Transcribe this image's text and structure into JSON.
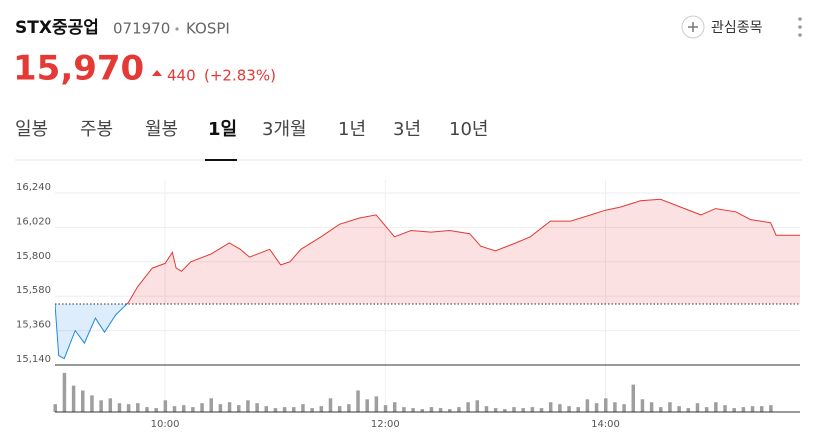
{
  "header": {
    "name": "STX중공업",
    "code": "071970",
    "market": "KOSPI",
    "price": "15,970",
    "change": "440",
    "change_pct": "(+2.83%)",
    "watch_label": "관심종목"
  },
  "tabs": [
    "일봉",
    "주봉",
    "월봉",
    "1일",
    "3개월",
    "1년",
    "3년",
    "10년"
  ],
  "active_tab": 3,
  "chart_data": {
    "type": "line",
    "x": [
      540,
      542,
      545,
      551,
      556,
      562,
      567,
      573,
      580,
      585,
      589,
      593,
      600,
      604,
      606,
      609,
      614,
      625,
      635,
      641,
      646,
      657,
      663,
      668,
      674,
      685,
      695,
      706,
      715,
      720,
      725,
      734,
      745,
      755,
      766,
      772,
      780,
      791,
      799,
      810,
      821,
      832,
      840,
      848,
      859,
      870,
      881,
      892,
      900,
      911,
      919,
      930,
      933,
      946
    ],
    "series": [
      {
        "values": [
          15530,
          15200,
          15180,
          15360,
          15280,
          15440,
          15350,
          15460,
          15540,
          15640,
          15700,
          15760,
          15790,
          15860,
          15760,
          15740,
          15800,
          15850,
          15920,
          15880,
          15830,
          15880,
          15780,
          15800,
          15880,
          15960,
          16040,
          16080,
          16100,
          16030,
          15960,
          16000,
          15990,
          16000,
          15980,
          15900,
          15870,
          15920,
          15960,
          16060,
          16060,
          16100,
          16130,
          16150,
          16190,
          16200,
          16150,
          16100,
          16140,
          16120,
          16070,
          16050,
          15970,
          15970
        ],
        "up_color": "#e53935",
        "down_color": "#1e88e5"
      }
    ],
    "baseline": 15530,
    "xlim": [
      540,
      946
    ],
    "ylim": [
      15140,
      16240
    ],
    "yticks": [
      {
        "value": 16240,
        "label": "16,240"
      },
      {
        "value": 16020,
        "label": "16,020"
      },
      {
        "value": 15800,
        "label": "15,800"
      },
      {
        "value": 15580,
        "label": "15,580"
      },
      {
        "value": 15360,
        "label": "15,360"
      },
      {
        "value": 15140,
        "label": "15,140"
      }
    ],
    "xticks": [
      {
        "value": 600,
        "label": "10:00"
      },
      {
        "value": 720,
        "label": "12:00"
      },
      {
        "value": 840,
        "label": "14:00"
      }
    ],
    "grid": true,
    "volume": {
      "color": "#9e9e9e",
      "ylim": [
        0,
        45
      ],
      "x": [
        540,
        545,
        550,
        555,
        560,
        565,
        570,
        575,
        580,
        585,
        590,
        595,
        600,
        605,
        610,
        615,
        620,
        625,
        630,
        635,
        640,
        645,
        650,
        655,
        660,
        665,
        670,
        675,
        680,
        685,
        690,
        695,
        700,
        705,
        710,
        715,
        720,
        725,
        730,
        735,
        740,
        745,
        750,
        755,
        760,
        765,
        770,
        775,
        780,
        785,
        790,
        795,
        800,
        805,
        810,
        815,
        820,
        825,
        830,
        835,
        840,
        845,
        850,
        855,
        860,
        865,
        870,
        875,
        880,
        885,
        890,
        895,
        900,
        905,
        910,
        915,
        920,
        925,
        930
      ],
      "values": [
        8,
        40,
        27,
        22,
        17,
        12,
        14,
        9,
        8,
        9,
        5,
        4,
        12,
        6,
        7,
        5,
        9,
        14,
        8,
        10,
        7,
        12,
        9,
        6,
        4,
        5,
        5,
        8,
        4,
        6,
        14,
        6,
        8,
        22,
        13,
        16,
        7,
        10,
        5,
        4,
        3,
        5,
        4,
        3,
        5,
        10,
        12,
        6,
        4,
        3,
        5,
        4,
        5,
        4,
        10,
        8,
        6,
        5,
        13,
        9,
        14,
        10,
        8,
        28,
        13,
        10,
        5,
        10,
        6,
        4,
        9,
        5,
        10,
        7,
        4,
        5,
        6,
        6,
        7
      ]
    }
  }
}
